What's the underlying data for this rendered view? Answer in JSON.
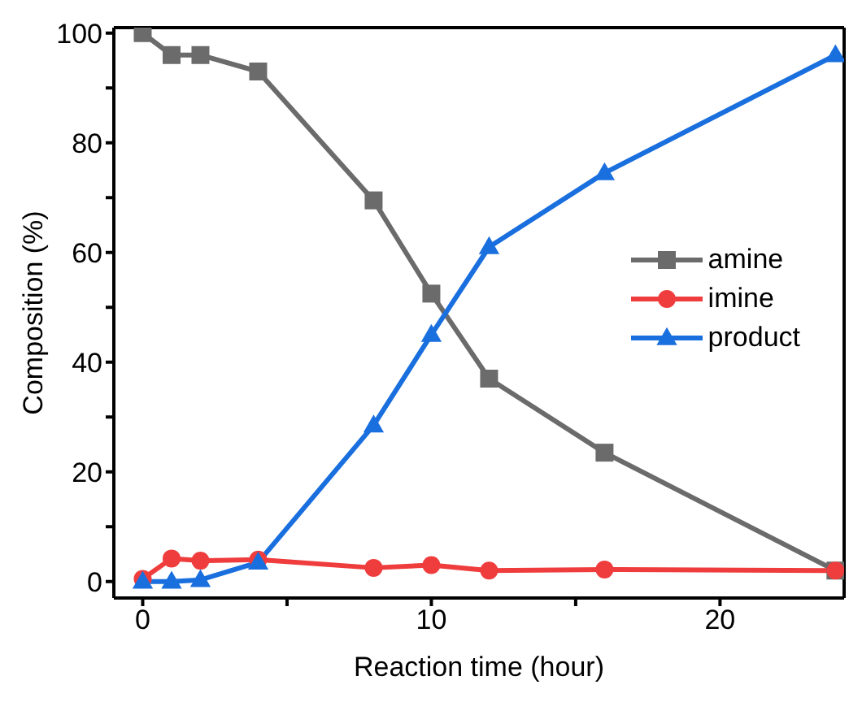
{
  "chart_data": {
    "type": "line",
    "xlabel": "Reaction time (hour)",
    "ylabel": "Composition (%)",
    "x": [
      0,
      1,
      2,
      4,
      8,
      10,
      12,
      16,
      24
    ],
    "xlim": [
      -1,
      24.3
    ],
    "ylim": [
      -3,
      101
    ],
    "xticks": [
      0,
      {
        "value": 5,
        "label": null
      },
      10,
      {
        "value": 15,
        "label": null
      },
      20
    ],
    "yticks": [
      0,
      {
        "value": 10,
        "label": null
      },
      20,
      {
        "value": 30,
        "label": null
      },
      40,
      {
        "value": 50,
        "label": null
      },
      60,
      {
        "value": 70,
        "label": null
      },
      80,
      {
        "value": 90,
        "label": null
      },
      100
    ],
    "grid": false,
    "legend": "right",
    "line_style": "solid",
    "series": [
      {
        "name": "amine",
        "color": "#6b6b6b",
        "marker": "square",
        "values": [
          100,
          96,
          96,
          93,
          69.5,
          52.5,
          37,
          23.5,
          2
        ]
      },
      {
        "name": "imine",
        "color": "#ef3d3d",
        "marker": "circle",
        "values": [
          0.5,
          4.2,
          3.8,
          4,
          2.5,
          3,
          2,
          2.2,
          2
        ]
      },
      {
        "name": "product",
        "color": "#1a6fdf",
        "marker": "triangle",
        "values": [
          0,
          0,
          0.3,
          3.5,
          28.5,
          45,
          61,
          74.5,
          96
        ]
      }
    ]
  }
}
